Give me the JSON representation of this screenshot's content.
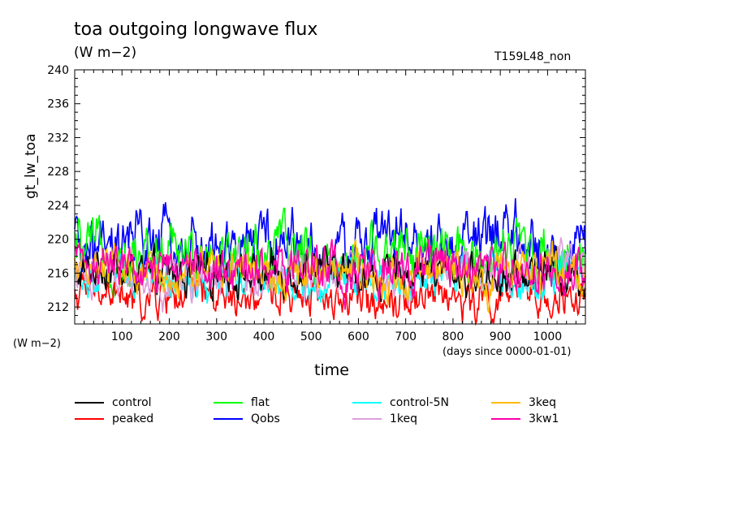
{
  "header": {
    "title": "toa outgoing longwave flux",
    "units": "(W m−2)",
    "run_id": "T159L48_non"
  },
  "axes": {
    "y_unit_label": "(W m−2)",
    "x_origin_label": "(days since 0000-01-01)"
  },
  "chart_data": {
    "type": "line",
    "title": "toa outgoing longwave flux",
    "xlabel": "time",
    "ylabel": "gt_lw_toa",
    "xlim": [
      0,
      1080
    ],
    "ylim": [
      210,
      240
    ],
    "x_ticks": [
      100,
      200,
      300,
      400,
      500,
      600,
      700,
      800,
      900,
      1000
    ],
    "y_ticks": [
      212,
      216,
      220,
      224,
      228,
      232,
      236,
      240
    ],
    "grid": false,
    "legend_position": "bottom",
    "series": [
      {
        "name": "control",
        "color": "#000000",
        "mean": 216.0,
        "amp": 1.6
      },
      {
        "name": "peaked",
        "color": "#ff0000",
        "mean": 213.2,
        "amp": 1.6
      },
      {
        "name": "flat",
        "color": "#00ff00",
        "mean": 218.3,
        "amp": 2.2
      },
      {
        "name": "Qobs",
        "color": "#0000ff",
        "mean": 219.2,
        "amp": 2.4
      },
      {
        "name": "control-5N",
        "color": "#00ffff",
        "mean": 215.6,
        "amp": 1.6
      },
      {
        "name": "1keq",
        "color": "#dda0dd",
        "mean": 215.8,
        "amp": 1.7
      },
      {
        "name": "3keq",
        "color": "#ffbb00",
        "mean": 216.0,
        "amp": 1.6
      },
      {
        "name": "3kw1",
        "color": "#ff00aa",
        "mean": 216.6,
        "amp": 1.8
      }
    ]
  }
}
